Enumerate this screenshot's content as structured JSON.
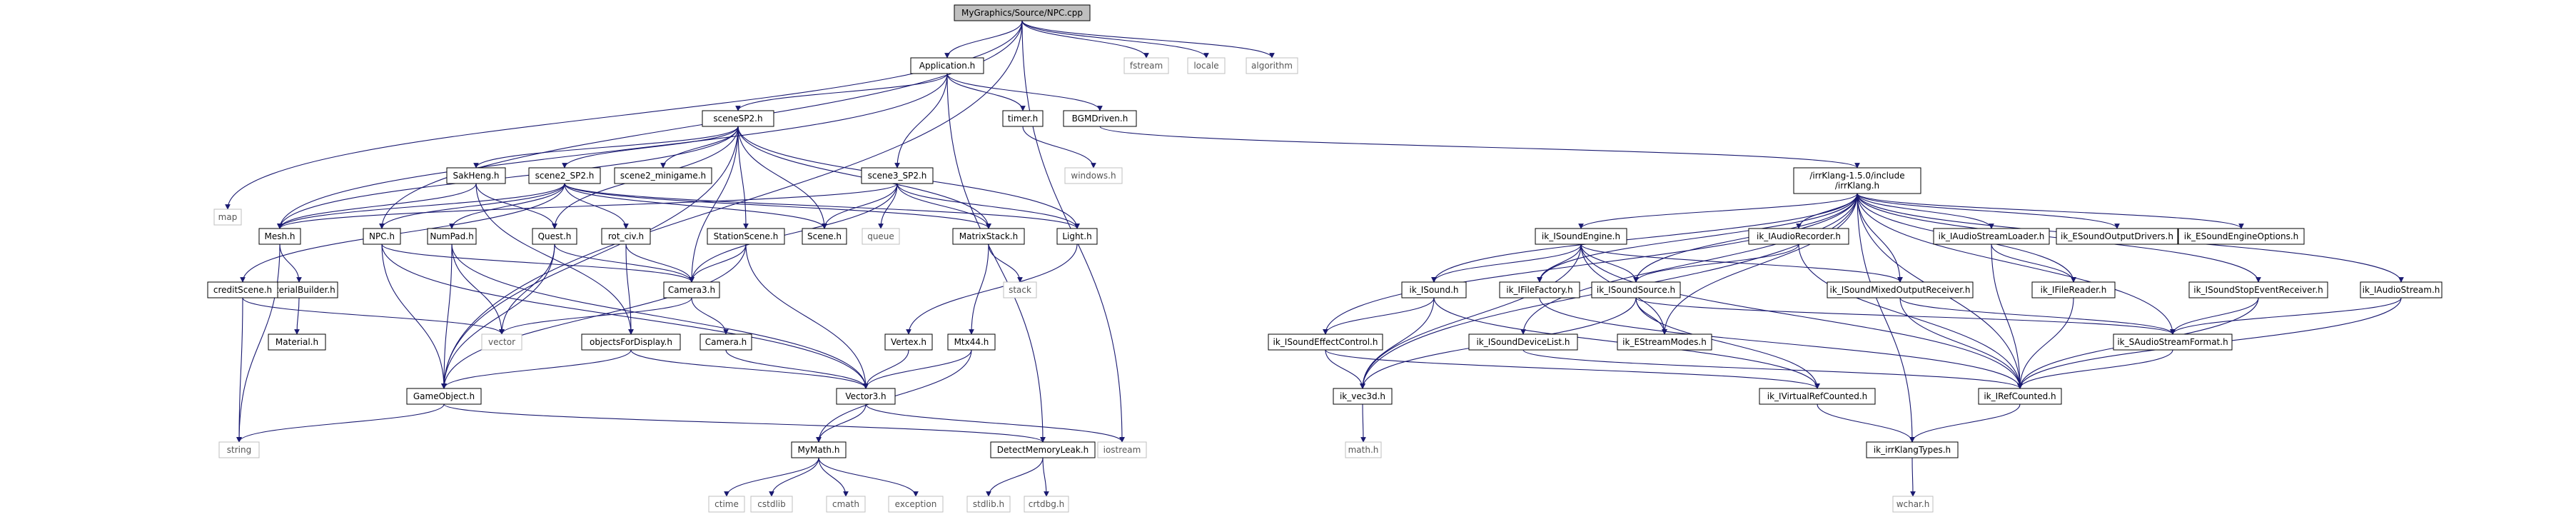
{
  "colors": {
    "edge": "#191970",
    "root_fill": "#bfbfbf",
    "node_border": "#000000",
    "external_border": "#bfbfbf",
    "external_text": "#555555"
  },
  "graph": {
    "nodes": [
      {
        "id": "npc_cpp",
        "label": "MyGraphics/Source/NPC.cpp",
        "kind": "root"
      },
      {
        "id": "fstream",
        "label": "fstream",
        "kind": "ext"
      },
      {
        "id": "locale",
        "label": "locale",
        "kind": "ext"
      },
      {
        "id": "algorithm",
        "label": "algorithm",
        "kind": "ext"
      },
      {
        "id": "application_h",
        "label": "Application.h",
        "kind": "int"
      },
      {
        "id": "timer_h",
        "label": "timer.h",
        "kind": "int"
      },
      {
        "id": "bgm_h",
        "label": "BGMDriven.h",
        "kind": "int"
      },
      {
        "id": "windows_h",
        "label": "windows.h",
        "kind": "ext"
      },
      {
        "id": "scenesp2_h",
        "label": "sceneSP2.h",
        "kind": "int"
      },
      {
        "id": "sakheng_h",
        "label": "SakHeng.h",
        "kind": "int"
      },
      {
        "id": "scene2sp2_h",
        "label": "scene2_SP2.h",
        "kind": "int"
      },
      {
        "id": "scene2mini_h",
        "label": "scene2_minigame.h",
        "kind": "int"
      },
      {
        "id": "scene3sp2_h",
        "label": "scene3_SP2.h",
        "kind": "int"
      },
      {
        "id": "irrklang_h",
        "label": "/irrKlang-1.5.0/include\n/irrKlang.h",
        "kind": "int"
      },
      {
        "id": "map",
        "label": "map",
        "kind": "ext"
      },
      {
        "id": "mesh_h",
        "label": "Mesh.h",
        "kind": "int"
      },
      {
        "id": "npc_h",
        "label": "NPC.h",
        "kind": "int"
      },
      {
        "id": "numpad_h",
        "label": "NumPad.h",
        "kind": "int"
      },
      {
        "id": "quest_h",
        "label": "Quest.h",
        "kind": "int"
      },
      {
        "id": "rotciv_h",
        "label": "rot_civ.h",
        "kind": "int"
      },
      {
        "id": "station_h",
        "label": "StationScene.h",
        "kind": "int"
      },
      {
        "id": "scene_h",
        "label": "Scene.h",
        "kind": "int"
      },
      {
        "id": "queue",
        "label": "queue",
        "kind": "ext"
      },
      {
        "id": "matrixstack_h",
        "label": "MatrixStack.h",
        "kind": "int"
      },
      {
        "id": "light_h",
        "label": "Light.h",
        "kind": "int"
      },
      {
        "id": "stack",
        "label": "stack",
        "kind": "ext"
      },
      {
        "id": "matbuilder_h",
        "label": "MaterialBuilder.h",
        "kind": "int"
      },
      {
        "id": "material_h",
        "label": "Material.h",
        "kind": "int"
      },
      {
        "id": "credit_h",
        "label": "creditScene.h",
        "kind": "int"
      },
      {
        "id": "camera3_h",
        "label": "Camera3.h",
        "kind": "int"
      },
      {
        "id": "camera_h",
        "label": "Camera.h",
        "kind": "int"
      },
      {
        "id": "vector",
        "label": "vector",
        "kind": "ext"
      },
      {
        "id": "objdisp_h",
        "label": "objectsForDisplay.h",
        "kind": "int"
      },
      {
        "id": "vertex_h",
        "label": "Vertex.h",
        "kind": "int"
      },
      {
        "id": "mtx44_h",
        "label": "Mtx44.h",
        "kind": "int"
      },
      {
        "id": "gameobject_h",
        "label": "GameObject.h",
        "kind": "int"
      },
      {
        "id": "vector3_h",
        "label": "Vector3.h",
        "kind": "int"
      },
      {
        "id": "string",
        "label": "string",
        "kind": "ext"
      },
      {
        "id": "mymath_h",
        "label": "MyMath.h",
        "kind": "int"
      },
      {
        "id": "detectleak_h",
        "label": "DetectMemoryLeak.h",
        "kind": "int"
      },
      {
        "id": "iostream",
        "label": "iostream",
        "kind": "ext"
      },
      {
        "id": "ctime",
        "label": "ctime",
        "kind": "ext"
      },
      {
        "id": "cstdlib",
        "label": "cstdlib",
        "kind": "ext"
      },
      {
        "id": "cmath",
        "label": "cmath",
        "kind": "ext"
      },
      {
        "id": "exception",
        "label": "exception",
        "kind": "ext"
      },
      {
        "id": "stdlib_h",
        "label": "stdlib.h",
        "kind": "ext"
      },
      {
        "id": "crtdbg_h",
        "label": "crtdbg.h",
        "kind": "ext"
      },
      {
        "id": "ik_isoundengine_h",
        "label": "ik_ISoundEngine.h",
        "kind": "int"
      },
      {
        "id": "ik_iaudiorecorder_h",
        "label": "ik_IAudioRecorder.h",
        "kind": "int"
      },
      {
        "id": "ik_iaudiostreamloader_h",
        "label": "ik_IAudioStreamLoader.h",
        "kind": "int"
      },
      {
        "id": "ik_esoundoutputdrivers_h",
        "label": "ik_ESoundOutputDrivers.h",
        "kind": "int"
      },
      {
        "id": "ik_esoundengineoptions_h",
        "label": "ik_ESoundEngineOptions.h",
        "kind": "int"
      },
      {
        "id": "ik_isound_h",
        "label": "ik_ISound.h",
        "kind": "int"
      },
      {
        "id": "ik_ifilefactory_h",
        "label": "ik_IFileFactory.h",
        "kind": "int"
      },
      {
        "id": "ik_isoundsource_h",
        "label": "ik_ISoundSource.h",
        "kind": "int"
      },
      {
        "id": "ik_isoundmixed_h",
        "label": "ik_ISoundMixedOutputReceiver.h",
        "kind": "int"
      },
      {
        "id": "ik_ifilereader_h",
        "label": "ik_IFileReader.h",
        "kind": "int"
      },
      {
        "id": "ik_isoundstopevent_h",
        "label": "ik_ISoundStopEventReceiver.h",
        "kind": "int"
      },
      {
        "id": "ik_iaudiostream_h",
        "label": "ik_IAudioStream.h",
        "kind": "int"
      },
      {
        "id": "ik_isoundeffectcontrol_h",
        "label": "ik_ISoundEffectControl.h",
        "kind": "int"
      },
      {
        "id": "ik_isounddevicelist_h",
        "label": "ik_ISoundDeviceList.h",
        "kind": "int"
      },
      {
        "id": "ik_estreammodes_h",
        "label": "ik_EStreamModes.h",
        "kind": "int"
      },
      {
        "id": "ik_saudiostreamformat_h",
        "label": "ik_SAudioStreamFormat.h",
        "kind": "int"
      },
      {
        "id": "ik_vec3d_h",
        "label": "ik_vec3d.h",
        "kind": "int"
      },
      {
        "id": "ik_ivirtualrefcounted_h",
        "label": "ik_IVirtualRefCounted.h",
        "kind": "int"
      },
      {
        "id": "ik_irefcounted_h",
        "label": "ik_IRefCounted.h",
        "kind": "int"
      },
      {
        "id": "math_h",
        "label": "math.h",
        "kind": "ext"
      },
      {
        "id": "ik_irrklangtypes_h",
        "label": "ik_irrKlangTypes.h",
        "kind": "int"
      },
      {
        "id": "wchar_h",
        "label": "wchar.h",
        "kind": "ext"
      }
    ],
    "edges": [
      [
        "npc_cpp",
        "fstream"
      ],
      [
        "npc_cpp",
        "locale"
      ],
      [
        "npc_cpp",
        "algorithm"
      ],
      [
        "npc_cpp",
        "application_h"
      ],
      [
        "npc_cpp",
        "map"
      ],
      [
        "npc_cpp",
        "npc_h"
      ],
      [
        "npc_cpp",
        "gameobject_h"
      ],
      [
        "npc_cpp",
        "iostream"
      ],
      [
        "application_h",
        "timer_h"
      ],
      [
        "application_h",
        "bgm_h"
      ],
      [
        "application_h",
        "scenesp2_h"
      ],
      [
        "application_h",
        "scene3sp2_h"
      ],
      [
        "application_h",
        "mesh_h"
      ],
      [
        "application_h",
        "detectleak_h"
      ],
      [
        "timer_h",
        "windows_h"
      ],
      [
        "bgm_h",
        "irrklang_h"
      ],
      [
        "scenesp2_h",
        "sakheng_h"
      ],
      [
        "scenesp2_h",
        "scene2sp2_h"
      ],
      [
        "scenesp2_h",
        "scene2mini_h"
      ],
      [
        "scenesp2_h",
        "quest_h"
      ],
      [
        "scenesp2_h",
        "station_h"
      ],
      [
        "scenesp2_h",
        "scene_h"
      ],
      [
        "scenesp2_h",
        "camera3_h"
      ],
      [
        "scenesp2_h",
        "mesh_h"
      ],
      [
        "scenesp2_h",
        "matrixstack_h"
      ],
      [
        "scenesp2_h",
        "light_h"
      ],
      [
        "scenesp2_h",
        "gameobject_h"
      ],
      [
        "sakheng_h",
        "mesh_h"
      ],
      [
        "sakheng_h",
        "quest_h"
      ],
      [
        "sakheng_h",
        "objdisp_h"
      ],
      [
        "scene2sp2_h",
        "npc_h"
      ],
      [
        "scene2sp2_h",
        "numpad_h"
      ],
      [
        "scene2sp2_h",
        "rotciv_h"
      ],
      [
        "scene2sp2_h",
        "scene_h"
      ],
      [
        "scene2sp2_h",
        "credit_h"
      ],
      [
        "scene2sp2_h",
        "matrixstack_h"
      ],
      [
        "scene2sp2_h",
        "light_h"
      ],
      [
        "scene2sp2_h",
        "mesh_h"
      ],
      [
        "scene3sp2_h",
        "scene_h"
      ],
      [
        "scene3sp2_h",
        "queue"
      ],
      [
        "scene3sp2_h",
        "matrixstack_h"
      ],
      [
        "scene3sp2_h",
        "light_h"
      ],
      [
        "scene3sp2_h",
        "camera3_h"
      ],
      [
        "scene3sp2_h",
        "mesh_h"
      ],
      [
        "mesh_h",
        "matbuilder_h"
      ],
      [
        "mesh_h",
        "string"
      ],
      [
        "matbuilder_h",
        "material_h"
      ],
      [
        "npc_h",
        "camera3_h"
      ],
      [
        "npc_h",
        "gameobject_h"
      ],
      [
        "npc_h",
        "vector3_h"
      ],
      [
        "numpad_h",
        "vector"
      ],
      [
        "numpad_h",
        "vector3_h"
      ],
      [
        "numpad_h",
        "gameobject_h"
      ],
      [
        "quest_h",
        "camera3_h"
      ],
      [
        "quest_h",
        "vector"
      ],
      [
        "quest_h",
        "gameobject_h"
      ],
      [
        "rotciv_h",
        "camera3_h"
      ],
      [
        "rotciv_h",
        "objdisp_h"
      ],
      [
        "station_h",
        "camera3_h"
      ],
      [
        "station_h",
        "vector3_h"
      ],
      [
        "station_h",
        "gameobject_h"
      ],
      [
        "matrixstack_h",
        "stack"
      ],
      [
        "matrixstack_h",
        "mtx44_h"
      ],
      [
        "light_h",
        "vertex_h"
      ],
      [
        "credit_h",
        "vector"
      ],
      [
        "credit_h",
        "string"
      ],
      [
        "camera3_h",
        "camera_h"
      ],
      [
        "camera3_h",
        "vector"
      ],
      [
        "camera_h",
        "vector3_h"
      ],
      [
        "objdisp_h",
        "vector3_h"
      ],
      [
        "objdisp_h",
        "gameobject_h"
      ],
      [
        "vertex_h",
        "vector3_h"
      ],
      [
        "mtx44_h",
        "vector3_h"
      ],
      [
        "mtx44_h",
        "mymath_h"
      ],
      [
        "gameobject_h",
        "string"
      ],
      [
        "gameobject_h",
        "detectleak_h"
      ],
      [
        "vector3_h",
        "mymath_h"
      ],
      [
        "vector3_h",
        "iostream"
      ],
      [
        "mymath_h",
        "ctime"
      ],
      [
        "mymath_h",
        "cstdlib"
      ],
      [
        "mymath_h",
        "cmath"
      ],
      [
        "mymath_h",
        "exception"
      ],
      [
        "detectleak_h",
        "stdlib_h"
      ],
      [
        "detectleak_h",
        "crtdbg_h"
      ],
      [
        "irrklang_h",
        "ik_isoundengine_h"
      ],
      [
        "irrklang_h",
        "ik_iaudiorecorder_h"
      ],
      [
        "irrklang_h",
        "ik_iaudiostreamloader_h"
      ],
      [
        "irrklang_h",
        "ik_esoundoutputdrivers_h"
      ],
      [
        "irrklang_h",
        "ik_esoundengineoptions_h"
      ],
      [
        "irrklang_h",
        "ik_isound_h"
      ],
      [
        "irrklang_h",
        "ik_ifilefactory_h"
      ],
      [
        "irrklang_h",
        "ik_isoundsource_h"
      ],
      [
        "irrklang_h",
        "ik_isoundmixed_h"
      ],
      [
        "irrklang_h",
        "ik_ifilereader_h"
      ],
      [
        "irrklang_h",
        "ik_isoundstopevent_h"
      ],
      [
        "irrklang_h",
        "ik_iaudiostream_h"
      ],
      [
        "irrklang_h",
        "ik_isoundeffectcontrol_h"
      ],
      [
        "irrklang_h",
        "ik_isounddevicelist_h"
      ],
      [
        "irrklang_h",
        "ik_estreammodes_h"
      ],
      [
        "irrklang_h",
        "ik_saudiostreamformat_h"
      ],
      [
        "irrklang_h",
        "ik_vec3d_h"
      ],
      [
        "irrklang_h",
        "ik_irefcounted_h"
      ],
      [
        "irrklang_h",
        "ik_irrklangtypes_h"
      ],
      [
        "ik_isoundengine_h",
        "ik_isound_h"
      ],
      [
        "ik_isoundengine_h",
        "ik_ifilefactory_h"
      ],
      [
        "ik_isoundengine_h",
        "ik_isoundsource_h"
      ],
      [
        "ik_isoundengine_h",
        "ik_isoundmixed_h"
      ],
      [
        "ik_isoundengine_h",
        "ik_estreammodes_h"
      ],
      [
        "ik_isoundengine_h",
        "ik_vec3d_h"
      ],
      [
        "ik_isoundengine_h",
        "ik_irefcounted_h"
      ],
      [
        "ik_iaudiorecorder_h",
        "ik_isoundsource_h"
      ],
      [
        "ik_iaudiorecorder_h",
        "ik_irefcounted_h"
      ],
      [
        "ik_iaudiostreamloader_h",
        "ik_ifilereader_h"
      ],
      [
        "ik_iaudiostreamloader_h",
        "ik_irefcounted_h"
      ],
      [
        "ik_isound_h",
        "ik_isoundeffectcontrol_h"
      ],
      [
        "ik_isound_h",
        "ik_vec3d_h"
      ],
      [
        "ik_isound_h",
        "ik_ivirtualrefcounted_h"
      ],
      [
        "ik_ifilefactory_h",
        "ik_irefcounted_h"
      ],
      [
        "ik_isoundsource_h",
        "ik_estreammodes_h"
      ],
      [
        "ik_isoundsource_h",
        "ik_saudiostreamformat_h"
      ],
      [
        "ik_isoundsource_h",
        "ik_vec3d_h"
      ],
      [
        "ik_isoundsource_h",
        "ik_ivirtualrefcounted_h"
      ],
      [
        "ik_isoundmixed_h",
        "ik_saudiostreamformat_h"
      ],
      [
        "ik_isoundmixed_h",
        "ik_irefcounted_h"
      ],
      [
        "ik_ifilereader_h",
        "ik_irefcounted_h"
      ],
      [
        "ik_isoundstopevent_h",
        "ik_saudiostreamformat_h"
      ],
      [
        "ik_isoundstopevent_h",
        "ik_irefcounted_h"
      ],
      [
        "ik_iaudiostream_h",
        "ik_saudiostreamformat_h"
      ],
      [
        "ik_iaudiostream_h",
        "ik_irefcounted_h"
      ],
      [
        "ik_isoundeffectcontrol_h",
        "ik_vec3d_h"
      ],
      [
        "ik_isoundeffectcontrol_h",
        "ik_ivirtualrefcounted_h"
      ],
      [
        "ik_isounddevicelist_h",
        "ik_irefcounted_h"
      ],
      [
        "ik_saudiostreamformat_h",
        "ik_irefcounted_h"
      ],
      [
        "ik_vec3d_h",
        "math_h"
      ],
      [
        "ik_ivirtualrefcounted_h",
        "ik_irrklangtypes_h"
      ],
      [
        "ik_irefcounted_h",
        "ik_irrklangtypes_h"
      ],
      [
        "ik_irrklangtypes_h",
        "wchar_h"
      ]
    ]
  }
}
